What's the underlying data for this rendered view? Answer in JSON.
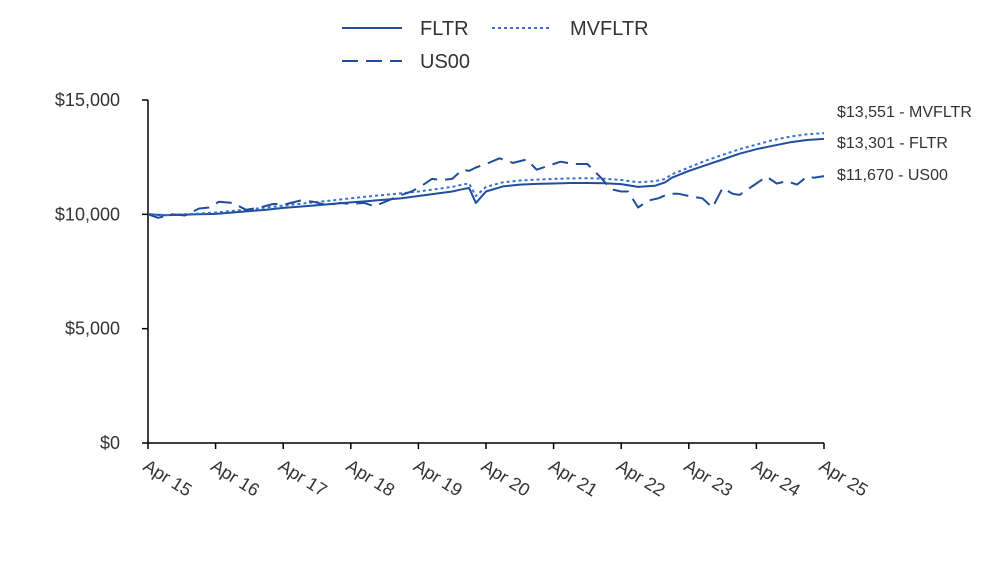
{
  "chart_data": {
    "type": "line",
    "title": "",
    "xlabel": "",
    "ylabel": "",
    "ylim": [
      0,
      15000
    ],
    "xlim": [
      2015.25,
      2025.25
    ],
    "grid": false,
    "legend_position": "top-center",
    "y_ticks": [
      {
        "value": 0,
        "label": "$0"
      },
      {
        "value": 5000,
        "label": "$5,000"
      },
      {
        "value": 10000,
        "label": "$10,000"
      },
      {
        "value": 15000,
        "label": "$15,000"
      }
    ],
    "x_ticks": [
      {
        "value": 2015.25,
        "label": "Apr 15"
      },
      {
        "value": 2016.25,
        "label": "Apr 16"
      },
      {
        "value": 2017.25,
        "label": "Apr 17"
      },
      {
        "value": 2018.25,
        "label": "Apr 18"
      },
      {
        "value": 2019.25,
        "label": "Apr 19"
      },
      {
        "value": 2020.25,
        "label": "Apr 20"
      },
      {
        "value": 2021.25,
        "label": "Apr 21"
      },
      {
        "value": 2022.25,
        "label": "Apr 22"
      },
      {
        "value": 2023.25,
        "label": "Apr 23"
      },
      {
        "value": 2024.25,
        "label": "Apr 24"
      },
      {
        "value": 2025.25,
        "label": "Apr 25"
      }
    ],
    "series": [
      {
        "name": "FLTR",
        "style": "solid",
        "color": "#1f4e9c",
        "end_label": "$13,301 - FLTR",
        "x": [
          2015.25,
          2015.5,
          2015.75,
          2016.0,
          2016.25,
          2016.5,
          2016.75,
          2017.0,
          2017.25,
          2017.5,
          2017.75,
          2018.0,
          2018.25,
          2018.5,
          2018.75,
          2019.0,
          2019.25,
          2019.5,
          2019.75,
          2019.9,
          2020.0,
          2020.1,
          2020.25,
          2020.5,
          2020.75,
          2021.0,
          2021.25,
          2021.5,
          2021.75,
          2022.0,
          2022.25,
          2022.5,
          2022.75,
          2022.9,
          2023.0,
          2023.25,
          2023.5,
          2023.75,
          2024.0,
          2024.25,
          2024.5,
          2024.75,
          2025.0,
          2025.25
        ],
        "values": [
          10000,
          9960,
          9980,
          10000,
          10020,
          10080,
          10140,
          10200,
          10280,
          10340,
          10400,
          10460,
          10520,
          10580,
          10640,
          10700,
          10800,
          10900,
          11000,
          11100,
          11150,
          10500,
          11000,
          11220,
          11300,
          11330,
          11350,
          11370,
          11370,
          11360,
          11320,
          11200,
          11250,
          11400,
          11600,
          11900,
          12150,
          12400,
          12650,
          12850,
          13000,
          13150,
          13250,
          13301
        ]
      },
      {
        "name": "MVFLTR",
        "style": "dotted",
        "color": "#3a6fd0",
        "end_label": "$13,551 - MVFLTR",
        "x": [
          2015.25,
          2015.5,
          2015.75,
          2016.0,
          2016.25,
          2016.5,
          2016.75,
          2017.0,
          2017.25,
          2017.5,
          2017.75,
          2018.0,
          2018.25,
          2018.5,
          2018.75,
          2019.0,
          2019.25,
          2019.5,
          2019.75,
          2019.9,
          2020.0,
          2020.1,
          2020.25,
          2020.5,
          2020.75,
          2021.0,
          2021.25,
          2021.5,
          2021.75,
          2022.0,
          2022.25,
          2022.5,
          2022.75,
          2022.9,
          2023.0,
          2023.25,
          2023.5,
          2023.75,
          2024.0,
          2024.25,
          2024.5,
          2024.75,
          2025.0,
          2025.25
        ],
        "values": [
          10000,
          9970,
          10000,
          10030,
          10080,
          10150,
          10220,
          10300,
          10380,
          10460,
          10540,
          10620,
          10700,
          10780,
          10850,
          10920,
          11000,
          11100,
          11200,
          11300,
          11350,
          10800,
          11200,
          11400,
          11480,
          11520,
          11550,
          11570,
          11580,
          11560,
          11500,
          11400,
          11450,
          11550,
          11750,
          12050,
          12350,
          12600,
          12850,
          13050,
          13250,
          13400,
          13500,
          13551
        ]
      },
      {
        "name": "US00",
        "style": "dashed",
        "color": "#1f4e9c",
        "end_label": "$11,670 - US00",
        "x": [
          2015.25,
          2015.4,
          2015.6,
          2015.8,
          2016.0,
          2016.15,
          2016.3,
          2016.5,
          2016.7,
          2016.9,
          2017.1,
          2017.3,
          2017.5,
          2017.7,
          2017.9,
          2018.1,
          2018.25,
          2018.45,
          2018.6,
          2018.8,
          2019.0,
          2019.15,
          2019.3,
          2019.45,
          2019.6,
          2019.75,
          2019.9,
          2020.0,
          2020.1,
          2020.25,
          2020.45,
          2020.65,
          2020.85,
          2021.0,
          2021.15,
          2021.35,
          2021.55,
          2021.75,
          2021.95,
          2022.1,
          2022.25,
          2022.35,
          2022.5,
          2022.65,
          2022.8,
          2022.95,
          2023.1,
          2023.25,
          2023.45,
          2023.6,
          2023.75,
          2023.9,
          2024.0,
          2024.1,
          2024.25,
          2024.4,
          2024.55,
          2024.7,
          2024.85,
          2025.0,
          2025.1,
          2025.25
        ],
        "values": [
          10000,
          9850,
          10000,
          9950,
          10250,
          10300,
          10550,
          10500,
          10200,
          10300,
          10450,
          10450,
          10600,
          10550,
          10400,
          10500,
          10450,
          10500,
          10350,
          10600,
          10850,
          11000,
          11250,
          11550,
          11500,
          11550,
          11950,
          11900,
          12050,
          12200,
          12450,
          12250,
          12400,
          11950,
          12100,
          12300,
          12200,
          12200,
          11600,
          11100,
          11000,
          11000,
          10300,
          10600,
          10700,
          10900,
          10900,
          10800,
          10700,
          10300,
          11150,
          10900,
          10850,
          11050,
          11350,
          11650,
          11350,
          11450,
          11300,
          11650,
          11600,
          11670
        ]
      }
    ]
  }
}
